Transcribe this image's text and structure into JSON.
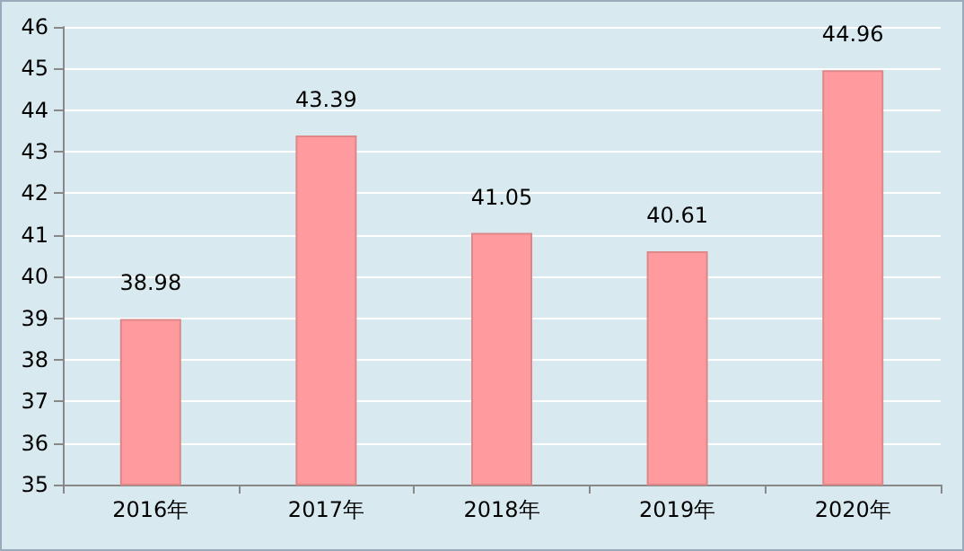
{
  "chart_data": {
    "type": "bar",
    "categories": [
      "2016年",
      "2017年",
      "2018年",
      "2019年",
      "2020年"
    ],
    "values": [
      38.98,
      43.39,
      41.05,
      40.61,
      44.96
    ],
    "color": "#ff9b9e",
    "ylim": [
      35,
      46
    ],
    "yticks": [
      35,
      36,
      37,
      38,
      39,
      40,
      41,
      42,
      43,
      44,
      45,
      46
    ],
    "grid": "y",
    "data_labels": true
  }
}
